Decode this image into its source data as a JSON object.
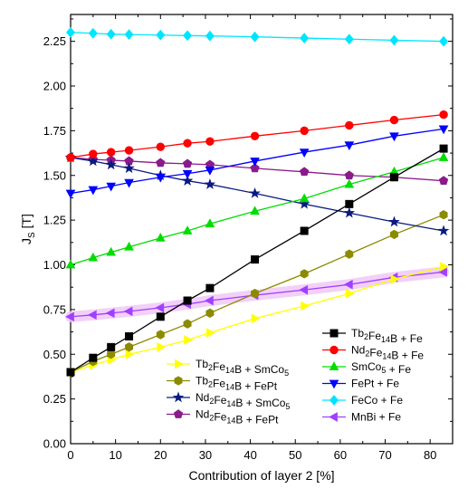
{
  "chart_data": {
    "type": "line",
    "xlabel": "Contribution of layer 2 [%]",
    "ylabel": {
      "base": "J",
      "sub": "S",
      "unit": " [T]"
    },
    "xlim": [
      0,
      85
    ],
    "ylim": [
      0,
      2.4
    ],
    "x_ticks": [
      "0",
      "10",
      "20",
      "30",
      "40",
      "50",
      "60",
      "70",
      "80"
    ],
    "y_ticks": [
      "0.00",
      "0.25",
      "0.50",
      "0.75",
      "1.00",
      "1.25",
      "1.50",
      "1.75",
      "2.00",
      "2.25"
    ],
    "x": [
      0,
      5,
      9,
      13,
      20,
      26,
      31,
      41,
      52,
      62,
      72,
      83
    ],
    "series": [
      {
        "name": [
          "Tb",
          {
            "sub": "2"
          },
          "Fe",
          {
            "sub": "14"
          },
          "B + Fe"
        ],
        "color": "#000000",
        "marker": "square",
        "values": [
          0.4,
          0.48,
          0.54,
          0.6,
          0.71,
          0.8,
          0.87,
          1.03,
          1.19,
          1.34,
          1.49,
          1.65
        ]
      },
      {
        "name": [
          "Nd",
          {
            "sub": "2"
          },
          "Fe",
          {
            "sub": "14"
          },
          "B + Fe"
        ],
        "color": "#ff0000",
        "marker": "circle",
        "values": [
          1.6,
          1.62,
          1.63,
          1.64,
          1.66,
          1.68,
          1.69,
          1.72,
          1.75,
          1.78,
          1.81,
          1.84
        ]
      },
      {
        "name": [
          "SmCo",
          {
            "sub": "5"
          },
          " + Fe"
        ],
        "color": "#00dd00",
        "marker": "triangle-up",
        "values": [
          1.0,
          1.04,
          1.07,
          1.1,
          1.15,
          1.19,
          1.23,
          1.3,
          1.37,
          1.45,
          1.52,
          1.6
        ]
      },
      {
        "name": [
          "FePt + Fe"
        ],
        "color": "#0000ff",
        "marker": "triangle-down",
        "values": [
          1.4,
          1.42,
          1.44,
          1.46,
          1.49,
          1.51,
          1.53,
          1.58,
          1.63,
          1.67,
          1.72,
          1.76
        ]
      },
      {
        "name": [
          "FeCo + Fe"
        ],
        "color": "#00e5ff",
        "marker": "diamond",
        "values": [
          2.3,
          2.295,
          2.29,
          2.288,
          2.285,
          2.282,
          2.28,
          2.275,
          2.268,
          2.262,
          2.256,
          2.25
        ]
      },
      {
        "name": [
          "MnBi + Fe"
        ],
        "color": "#a040ff",
        "marker": "triangle-left",
        "values": [
          0.71,
          0.72,
          0.73,
          0.74,
          0.76,
          0.78,
          0.8,
          0.83,
          0.86,
          0.89,
          0.93,
          0.96
        ]
      },
      {
        "name": [
          "Tb",
          {
            "sub": "2"
          },
          "Fe",
          {
            "sub": "14"
          },
          "B + SmCo",
          {
            "sub": "5"
          }
        ],
        "color": "#ffff00",
        "marker": "triangle-right",
        "values": [
          0.4,
          0.44,
          0.47,
          0.5,
          0.54,
          0.58,
          0.62,
          0.7,
          0.77,
          0.84,
          0.92,
          0.99
        ]
      },
      {
        "name": [
          "Tb",
          {
            "sub": "2"
          },
          "Fe",
          {
            "sub": "14"
          },
          "B + FePt"
        ],
        "color": "#8b8b00",
        "marker": "hexagon",
        "values": [
          0.4,
          0.46,
          0.5,
          0.54,
          0.61,
          0.67,
          0.73,
          0.84,
          0.95,
          1.06,
          1.17,
          1.28
        ]
      },
      {
        "name": [
          "Nd",
          {
            "sub": "2"
          },
          "Fe",
          {
            "sub": "14"
          },
          "B + SmCo",
          {
            "sub": "5"
          }
        ],
        "color": "#0a1a80",
        "marker": "star",
        "values": [
          1.6,
          1.58,
          1.56,
          1.54,
          1.5,
          1.47,
          1.45,
          1.4,
          1.34,
          1.29,
          1.24,
          1.19
        ]
      },
      {
        "name": [
          "Nd",
          {
            "sub": "2"
          },
          "Fe",
          {
            "sub": "14"
          },
          "B + FePt"
        ],
        "color": "#8b1a8b",
        "marker": "pentagon",
        "values": [
          1.6,
          1.59,
          1.585,
          1.58,
          1.57,
          1.565,
          1.56,
          1.54,
          1.52,
          1.5,
          1.49,
          1.47
        ]
      }
    ],
    "legend_right": [
      0,
      1,
      2,
      3,
      4,
      5
    ],
    "legend_left": [
      6,
      7,
      8,
      9
    ],
    "grid": false
  }
}
